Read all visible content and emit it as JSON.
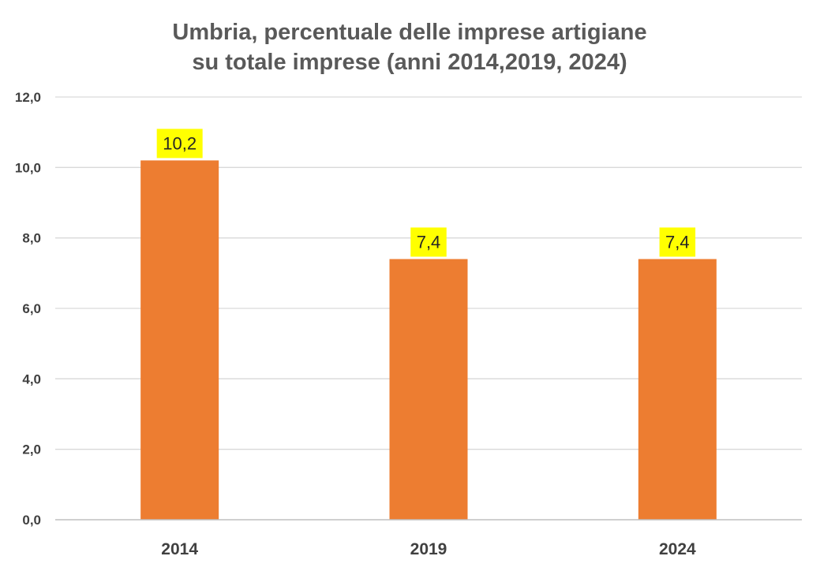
{
  "chart_data": {
    "type": "bar",
    "title_lines": [
      "Umbria, percentuale delle imprese artigiane",
      "su totale imprese (anni 2014,2019, 2024)"
    ],
    "categories": [
      "2014",
      "2019",
      "2024"
    ],
    "values": [
      10.2,
      7.4,
      7.4
    ],
    "data_labels": [
      "10,2",
      "7,4",
      "7,4"
    ],
    "ylim": [
      0,
      12
    ],
    "yticks": [
      0,
      2,
      4,
      6,
      8,
      10,
      12
    ],
    "ytick_labels": [
      "0,0",
      "2,0",
      "4,0",
      "6,0",
      "8,0",
      "10,0",
      "12,0"
    ],
    "xlabel": "",
    "ylabel": "",
    "grid": true,
    "legend": "none",
    "colors": {
      "bar": "#ED7D31",
      "data_label_background": "#FFFF00",
      "title": "#595959",
      "gridline": "#D9D9D9"
    }
  }
}
